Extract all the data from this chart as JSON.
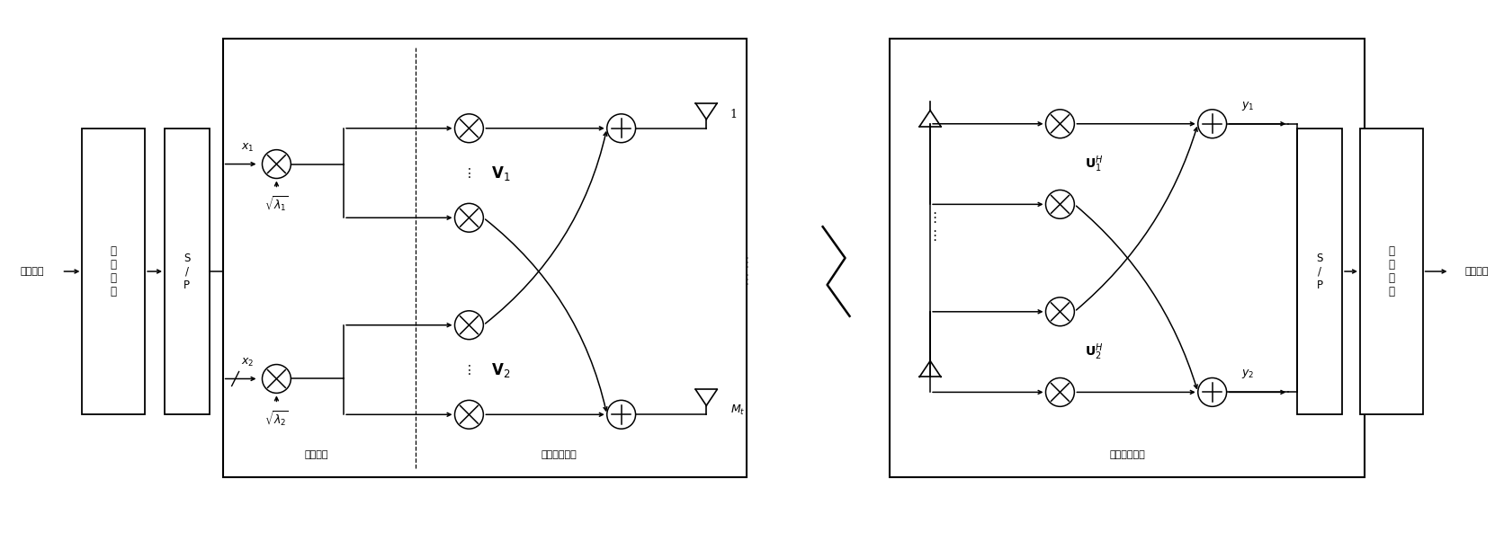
{
  "figsize": [
    16.72,
    6.12
  ],
  "dpi": 100,
  "bg": "#ffffff",
  "xlim": [
    0,
    167.2
  ],
  "ylim": [
    0,
    61.2
  ]
}
